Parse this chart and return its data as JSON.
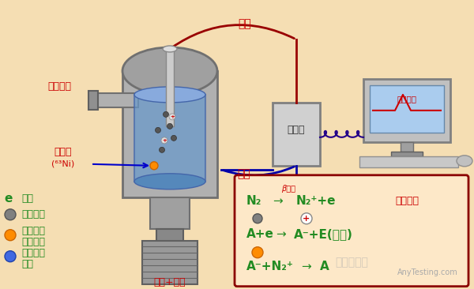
{
  "bg_color": "#f5deb3",
  "title": "",
  "fig_width": 6.0,
  "fig_height": 3.66,
  "legend_items": [
    {
      "symbol": "e",
      "color": "#228B22",
      "text": "电子"
    },
    {
      "symbol": "circle_gray",
      "color": "#808080",
      "text": "载气分子"
    },
    {
      "symbol": "circle_orange",
      "color": "#FF8C00",
      "text": "含氮、磷\n等电负性\n元素试样\n分子"
    },
    {
      "symbol": "circle_blue",
      "color": "#4169E1",
      "text": ""
    }
  ],
  "equations": [
    {
      "line1": "N₂",
      "arrow": "→",
      "line2": "N₂⁺+e",
      "note": "产生基流",
      "superscript": "β射线"
    },
    {
      "line1": "A+e",
      "arrow": "→",
      "line2": "A⁻+E(能量)"
    },
    {
      "line1": "A⁻+N₂⁺",
      "arrow": "→",
      "line2": "A"
    }
  ],
  "labels": {
    "yang_ji": "阳极",
    "yin_ji": "阴极",
    "zai_qi_chukou": "载气出口",
    "fang_she_yuan": "放射源",
    "ni63": "(⁶³Ni)",
    "fang_da_qi": "放大器",
    "kong_zhi_xi_tong": "控制系统",
    "zai_qi_zufen": "载气+组分"
  },
  "colors": {
    "red_text": "#CC0000",
    "green_text": "#228B22",
    "dark_red": "#8B0000",
    "box_border": "#8B0000",
    "box_bg": "#fde8c8",
    "label_red": "#CC0000"
  }
}
